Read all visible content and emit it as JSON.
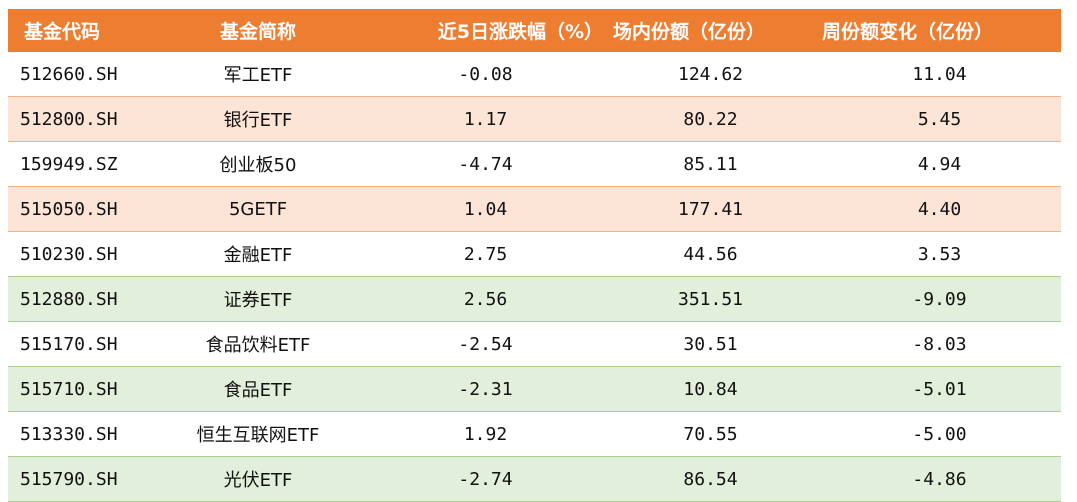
{
  "headers": {
    "code": "基金代码",
    "name": "基金简称",
    "change": "近5日涨跌幅（%）",
    "shares": "场内份额（亿份）",
    "weekly": "周份额变化（亿份）"
  },
  "colors": {
    "header_bg": "#ed7d31",
    "orange_row": "#fce4d6",
    "green_row": "#e2efda"
  },
  "rows": [
    {
      "code": "512660.SH",
      "name": "军工ETF",
      "change": "-0.08",
      "shares": "124.62",
      "weekly": "11.04",
      "tint": "white"
    },
    {
      "code": "512800.SH",
      "name": "银行ETF",
      "change": "1.17",
      "shares": "80.22",
      "weekly": "5.45",
      "tint": "orange"
    },
    {
      "code": "159949.SZ",
      "name": "创业板50",
      "change": "-4.74",
      "shares": "85.11",
      "weekly": "4.94",
      "tint": "white"
    },
    {
      "code": "515050.SH",
      "name": "5GETF",
      "change": "1.04",
      "shares": "177.41",
      "weekly": "4.40",
      "tint": "orange"
    },
    {
      "code": "510230.SH",
      "name": "金融ETF",
      "change": "2.75",
      "shares": "44.56",
      "weekly": "3.53",
      "tint": "white"
    },
    {
      "code": "512880.SH",
      "name": "证券ETF",
      "change": "2.56",
      "shares": "351.51",
      "weekly": "-9.09",
      "tint": "green"
    },
    {
      "code": "515170.SH",
      "name": "食品饮料ETF",
      "change": "-2.54",
      "shares": "30.51",
      "weekly": "-8.03",
      "tint": "white"
    },
    {
      "code": "515710.SH",
      "name": "食品ETF",
      "change": "-2.31",
      "shares": "10.84",
      "weekly": "-5.01",
      "tint": "green"
    },
    {
      "code": "513330.SH",
      "name": "恒生互联网ETF",
      "change": "1.92",
      "shares": "70.55",
      "weekly": "-5.00",
      "tint": "white"
    },
    {
      "code": "515790.SH",
      "name": "光伏ETF",
      "change": "-2.74",
      "shares": "86.54",
      "weekly": "-4.86",
      "tint": "green"
    }
  ]
}
